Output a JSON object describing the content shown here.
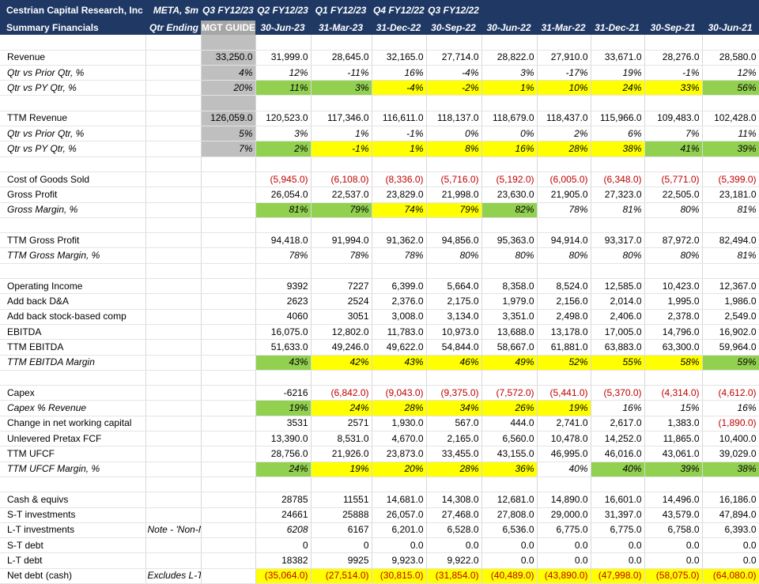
{
  "header": {
    "title_line1": "Cestrian Capital Research, Inc",
    "title_line2": "Summary Financials",
    "ticker": "META, $m",
    "qtr_ending": "Qtr Ending",
    "guide_quarter": "Q3 FY12/23",
    "guide_label": "MGT GUIDE",
    "quarters": [
      "Q2 FY12/23",
      "Q1 FY12/23",
      "Q4 FY12/22",
      "Q3 FY12/22",
      "",
      "",
      "",
      "",
      ""
    ],
    "dates": [
      "30-Jun-23",
      "31-Mar-23",
      "31-Dec-22",
      "30-Sep-22",
      "30-Jun-22",
      "31-Mar-22",
      "31-Dec-21",
      "30-Sep-21",
      "30-Jun-21"
    ]
  },
  "colors": {
    "header_bg": "#1f3864",
    "guide_bg": "#bfbfbf",
    "green": "#92d050",
    "yellow": "#ffff00",
    "negative": "#c00000"
  },
  "rows": [
    {
      "blank": true
    },
    {
      "label": "Revenue",
      "note": "",
      "guide": "33,250.0",
      "cells": [
        {
          "v": "31,999.0"
        },
        {
          "v": "28,645.0"
        },
        {
          "v": "32,165.0"
        },
        {
          "v": "27,714.0"
        },
        {
          "v": "28,822.0"
        },
        {
          "v": "27,910.0"
        },
        {
          "v": "33,671.0"
        },
        {
          "v": "28,276.0"
        },
        {
          "v": "28,580.0"
        }
      ]
    },
    {
      "label": "Qtr vs Prior Qtr, %",
      "italic": true,
      "note": "",
      "guide": "4%",
      "cells": [
        {
          "v": "12%"
        },
        {
          "v": "-11%"
        },
        {
          "v": "16%"
        },
        {
          "v": "-4%"
        },
        {
          "v": "3%"
        },
        {
          "v": "-17%"
        },
        {
          "v": "19%"
        },
        {
          "v": "-1%"
        },
        {
          "v": "12%"
        }
      ]
    },
    {
      "label": "Qtr vs PY Qtr, %",
      "italic": true,
      "note": "",
      "guide": "20%",
      "cells": [
        {
          "v": "11%",
          "c": "green"
        },
        {
          "v": "3%",
          "c": "green"
        },
        {
          "v": "-4%",
          "c": "yellow"
        },
        {
          "v": "-2%",
          "c": "yellow"
        },
        {
          "v": "1%",
          "c": "yellow"
        },
        {
          "v": "10%",
          "c": "yellow"
        },
        {
          "v": "24%",
          "c": "yellow"
        },
        {
          "v": "33%",
          "c": "yellow"
        },
        {
          "v": "56%",
          "c": "green"
        }
      ]
    },
    {
      "blank": true
    },
    {
      "label": "TTM Revenue",
      "note": "",
      "guide": "126,059.0",
      "cells": [
        {
          "v": "120,523.0"
        },
        {
          "v": "117,346.0"
        },
        {
          "v": "116,611.0"
        },
        {
          "v": "118,137.0"
        },
        {
          "v": "118,679.0"
        },
        {
          "v": "118,437.0"
        },
        {
          "v": "115,966.0"
        },
        {
          "v": "109,483.0"
        },
        {
          "v": "102,428.0"
        }
      ]
    },
    {
      "label": "Qtr vs Prior Qtr, %",
      "italic": true,
      "note": "",
      "guide": "5%",
      "cells": [
        {
          "v": "3%"
        },
        {
          "v": "1%"
        },
        {
          "v": "-1%"
        },
        {
          "v": "0%"
        },
        {
          "v": "0%"
        },
        {
          "v": "2%"
        },
        {
          "v": "6%"
        },
        {
          "v": "7%"
        },
        {
          "v": "11%"
        }
      ]
    },
    {
      "label": "Qtr vs PY Qtr, %",
      "italic": true,
      "note": "",
      "guide": "7%",
      "cells": [
        {
          "v": "2%",
          "c": "green"
        },
        {
          "v": "-1%",
          "c": "yellow"
        },
        {
          "v": "1%",
          "c": "yellow"
        },
        {
          "v": "8%",
          "c": "yellow"
        },
        {
          "v": "16%",
          "c": "yellow"
        },
        {
          "v": "28%",
          "c": "yellow"
        },
        {
          "v": "38%",
          "c": "yellow"
        },
        {
          "v": "41%",
          "c": "green"
        },
        {
          "v": "39%",
          "c": "green"
        }
      ]
    },
    {
      "blank": true
    },
    {
      "label": "Cost of Goods Sold",
      "note": "",
      "guide": "",
      "cells": [
        {
          "v": "(5,945.0)",
          "c": "red"
        },
        {
          "v": "(6,108.0)",
          "c": "red"
        },
        {
          "v": "(8,336.0)",
          "c": "red"
        },
        {
          "v": "(5,716.0)",
          "c": "red"
        },
        {
          "v": "(5,192.0)",
          "c": "red"
        },
        {
          "v": "(6,005.0)",
          "c": "red"
        },
        {
          "v": "(6,348.0)",
          "c": "red"
        },
        {
          "v": "(5,771.0)",
          "c": "red"
        },
        {
          "v": "(5,399.0)",
          "c": "red"
        }
      ]
    },
    {
      "label": "Gross Profit",
      "note": "",
      "guide": "",
      "cells": [
        {
          "v": "26,054.0"
        },
        {
          "v": "22,537.0"
        },
        {
          "v": "23,829.0"
        },
        {
          "v": "21,998.0"
        },
        {
          "v": "23,630.0"
        },
        {
          "v": "21,905.0"
        },
        {
          "v": "27,323.0"
        },
        {
          "v": "22,505.0"
        },
        {
          "v": "23,181.0"
        }
      ]
    },
    {
      "label": "Gross Margin, %",
      "italic": true,
      "note": "",
      "guide": "",
      "cells": [
        {
          "v": "81%",
          "c": "green"
        },
        {
          "v": "79%",
          "c": "green"
        },
        {
          "v": "74%",
          "c": "yellow"
        },
        {
          "v": "79%",
          "c": "yellow"
        },
        {
          "v": "82%",
          "c": "green"
        },
        {
          "v": "78%"
        },
        {
          "v": "81%"
        },
        {
          "v": "80%"
        },
        {
          "v": "81%"
        }
      ]
    },
    {
      "blank": true
    },
    {
      "label": "TTM Gross Profit",
      "note": "",
      "guide": "",
      "cells": [
        {
          "v": "94,418.0"
        },
        {
          "v": "91,994.0"
        },
        {
          "v": "91,362.0"
        },
        {
          "v": "94,856.0"
        },
        {
          "v": "95,363.0"
        },
        {
          "v": "94,914.0"
        },
        {
          "v": "93,317.0"
        },
        {
          "v": "87,972.0"
        },
        {
          "v": "82,494.0"
        }
      ]
    },
    {
      "label": "TTM Gross Margin, %",
      "italic": true,
      "note": "",
      "guide": "",
      "cells": [
        {
          "v": "78%"
        },
        {
          "v": "78%"
        },
        {
          "v": "78%"
        },
        {
          "v": "80%"
        },
        {
          "v": "80%"
        },
        {
          "v": "80%"
        },
        {
          "v": "80%"
        },
        {
          "v": "80%"
        },
        {
          "v": "81%"
        }
      ]
    },
    {
      "blank": true
    },
    {
      "label": "Operating Income",
      "note": "",
      "guide": "",
      "cells": [
        {
          "v": "9392"
        },
        {
          "v": "7227"
        },
        {
          "v": "6,399.0"
        },
        {
          "v": "5,664.0"
        },
        {
          "v": "8,358.0"
        },
        {
          "v": "8,524.0"
        },
        {
          "v": "12,585.0"
        },
        {
          "v": "10,423.0"
        },
        {
          "v": "12,367.0"
        }
      ]
    },
    {
      "label": "Add back D&A",
      "note": "",
      "guide": "",
      "cells": [
        {
          "v": "2623"
        },
        {
          "v": "2524"
        },
        {
          "v": "2,376.0"
        },
        {
          "v": "2,175.0"
        },
        {
          "v": "1,979.0"
        },
        {
          "v": "2,156.0"
        },
        {
          "v": "2,014.0"
        },
        {
          "v": "1,995.0"
        },
        {
          "v": "1,986.0"
        }
      ]
    },
    {
      "label": "Add back stock-based comp",
      "note": "",
      "guide": "",
      "cells": [
        {
          "v": "4060"
        },
        {
          "v": "3051"
        },
        {
          "v": "3,008.0"
        },
        {
          "v": "3,134.0"
        },
        {
          "v": "3,351.0"
        },
        {
          "v": "2,498.0"
        },
        {
          "v": "2,406.0"
        },
        {
          "v": "2,378.0"
        },
        {
          "v": "2,549.0"
        }
      ]
    },
    {
      "label": "EBITDA",
      "note": "",
      "guide": "",
      "cells": [
        {
          "v": "16,075.0"
        },
        {
          "v": "12,802.0"
        },
        {
          "v": "11,783.0"
        },
        {
          "v": "10,973.0"
        },
        {
          "v": "13,688.0"
        },
        {
          "v": "13,178.0"
        },
        {
          "v": "17,005.0"
        },
        {
          "v": "14,796.0"
        },
        {
          "v": "16,902.0"
        }
      ]
    },
    {
      "label": "TTM EBITDA",
      "note": "",
      "guide": "",
      "cells": [
        {
          "v": "51,633.0"
        },
        {
          "v": "49,246.0"
        },
        {
          "v": "49,622.0"
        },
        {
          "v": "54,844.0"
        },
        {
          "v": "58,667.0"
        },
        {
          "v": "61,881.0"
        },
        {
          "v": "63,883.0"
        },
        {
          "v": "63,300.0"
        },
        {
          "v": "59,964.0"
        }
      ]
    },
    {
      "label": "TTM EBITDA Margin",
      "italic": true,
      "note": "",
      "guide": "",
      "cells": [
        {
          "v": "43%",
          "c": "green"
        },
        {
          "v": "42%",
          "c": "yellow"
        },
        {
          "v": "43%",
          "c": "yellow"
        },
        {
          "v": "46%",
          "c": "yellow"
        },
        {
          "v": "49%",
          "c": "yellow"
        },
        {
          "v": "52%",
          "c": "yellow"
        },
        {
          "v": "55%",
          "c": "yellow"
        },
        {
          "v": "58%",
          "c": "yellow"
        },
        {
          "v": "59%",
          "c": "green"
        }
      ]
    },
    {
      "blank": true
    },
    {
      "label": "Capex",
      "note": "",
      "guide": "",
      "cells": [
        {
          "v": "-6216"
        },
        {
          "v": "(6,842.0)",
          "c": "red"
        },
        {
          "v": "(9,043.0)",
          "c": "red"
        },
        {
          "v": "(9,375.0)",
          "c": "red"
        },
        {
          "v": "(7,572.0)",
          "c": "red"
        },
        {
          "v": "(5,441.0)",
          "c": "red"
        },
        {
          "v": "(5,370.0)",
          "c": "red"
        },
        {
          "v": "(4,314.0)",
          "c": "red"
        },
        {
          "v": "(4,612.0)",
          "c": "red"
        }
      ]
    },
    {
      "label": "Capex % Revenue",
      "italic": true,
      "note": "",
      "guide": "",
      "cells": [
        {
          "v": "19%",
          "c": "green"
        },
        {
          "v": "24%",
          "c": "yellow"
        },
        {
          "v": "28%",
          "c": "yellow"
        },
        {
          "v": "34%",
          "c": "yellow"
        },
        {
          "v": "26%",
          "c": "yellow"
        },
        {
          "v": "19%",
          "c": "yellow"
        },
        {
          "v": "16%"
        },
        {
          "v": "15%"
        },
        {
          "v": "16%"
        }
      ]
    },
    {
      "label": "Change in net working capital",
      "note": "",
      "guide": "",
      "cells": [
        {
          "v": "3531"
        },
        {
          "v": "2571"
        },
        {
          "v": "1,930.0"
        },
        {
          "v": "567.0"
        },
        {
          "v": "444.0"
        },
        {
          "v": "2,741.0"
        },
        {
          "v": "2,617.0"
        },
        {
          "v": "1,383.0"
        },
        {
          "v": "(1,890.0)",
          "c": "red"
        }
      ]
    },
    {
      "label": "Unlevered Pretax FCF",
      "note": "",
      "guide": "",
      "cells": [
        {
          "v": "13,390.0"
        },
        {
          "v": "8,531.0"
        },
        {
          "v": "4,670.0"
        },
        {
          "v": "2,165.0"
        },
        {
          "v": "6,560.0"
        },
        {
          "v": "10,478.0"
        },
        {
          "v": "14,252.0"
        },
        {
          "v": "11,865.0"
        },
        {
          "v": "10,400.0"
        }
      ]
    },
    {
      "label": "TTM UFCF",
      "note": "",
      "guide": "",
      "cells": [
        {
          "v": "28,756.0"
        },
        {
          "v": "21,926.0"
        },
        {
          "v": "23,873.0"
        },
        {
          "v": "33,455.0"
        },
        {
          "v": "43,155.0"
        },
        {
          "v": "46,995.0"
        },
        {
          "v": "46,016.0"
        },
        {
          "v": "43,061.0"
        },
        {
          "v": "39,029.0"
        }
      ]
    },
    {
      "label": "TTM UFCF Margin, %",
      "italic": true,
      "note": "",
      "guide": "",
      "cells": [
        {
          "v": "24%",
          "c": "green"
        },
        {
          "v": "19%",
          "c": "yellow"
        },
        {
          "v": "20%",
          "c": "yellow"
        },
        {
          "v": "28%",
          "c": "yellow"
        },
        {
          "v": "36%",
          "c": "yellow"
        },
        {
          "v": "40%"
        },
        {
          "v": "40%",
          "c": "green"
        },
        {
          "v": "39%",
          "c": "green"
        },
        {
          "v": "38%",
          "c": "green"
        }
      ]
    },
    {
      "blank": true
    },
    {
      "label": "Cash & equivs",
      "note": "",
      "guide": "",
      "cells": [
        {
          "v": "28785"
        },
        {
          "v": "11551"
        },
        {
          "v": "14,681.0"
        },
        {
          "v": "14,308.0"
        },
        {
          "v": "12,681.0"
        },
        {
          "v": "14,890.0"
        },
        {
          "v": "16,601.0"
        },
        {
          "v": "14,496.0"
        },
        {
          "v": "16,186.0"
        }
      ]
    },
    {
      "label": "S-T investments",
      "note": "",
      "guide": "",
      "cells": [
        {
          "v": "24661"
        },
        {
          "v": "25888"
        },
        {
          "v": "26,057.0"
        },
        {
          "v": "27,468.0"
        },
        {
          "v": "27,808.0"
        },
        {
          "v": "29,000.0"
        },
        {
          "v": "31,397.0"
        },
        {
          "v": "43,579.0"
        },
        {
          "v": "47,894.0"
        }
      ]
    },
    {
      "label": "L-T investments",
      "note": "Note - 'Non-Marketable",
      "guide": "",
      "cells": [
        {
          "v": "6208",
          "i": true
        },
        {
          "v": "6167"
        },
        {
          "v": "6,201.0"
        },
        {
          "v": "6,528.0"
        },
        {
          "v": "6,536.0"
        },
        {
          "v": "6,775.0"
        },
        {
          "v": "6,775.0"
        },
        {
          "v": "6,758.0"
        },
        {
          "v": "6,393.0"
        }
      ]
    },
    {
      "label": "S-T debt",
      "note": "",
      "guide": "",
      "cells": [
        {
          "v": "0"
        },
        {
          "v": "0"
        },
        {
          "v": "0.0"
        },
        {
          "v": "0.0"
        },
        {
          "v": "0.0"
        },
        {
          "v": "0.0"
        },
        {
          "v": "0.0"
        },
        {
          "v": "0.0"
        },
        {
          "v": "0.0"
        }
      ]
    },
    {
      "label": "L-T debt",
      "note": "",
      "guide": "",
      "cells": [
        {
          "v": "18382"
        },
        {
          "v": "9925"
        },
        {
          "v": "9,923.0"
        },
        {
          "v": "9,922.0"
        },
        {
          "v": "0.0"
        },
        {
          "v": "0.0"
        },
        {
          "v": "0.0"
        },
        {
          "v": "0.0"
        },
        {
          "v": "0.0"
        }
      ]
    },
    {
      "label": "Net debt (cash)",
      "note": "Excludes L-T Investment",
      "guide": "",
      "cells": [
        {
          "v": "(35,064.0)",
          "c": "yellow red"
        },
        {
          "v": "(27,514.0)",
          "c": "yellow red"
        },
        {
          "v": "(30,815.0)",
          "c": "yellow red"
        },
        {
          "v": "(31,854.0)",
          "c": "yellow red"
        },
        {
          "v": "(40,489.0)",
          "c": "yellow red"
        },
        {
          "v": "(43,890.0)",
          "c": "yellow red"
        },
        {
          "v": "(47,998.0)",
          "c": "yellow red"
        },
        {
          "v": "(58,075.0)",
          "c": "yellow red"
        },
        {
          "v": "(64,080.0)",
          "c": "yellow red"
        }
      ]
    }
  ]
}
